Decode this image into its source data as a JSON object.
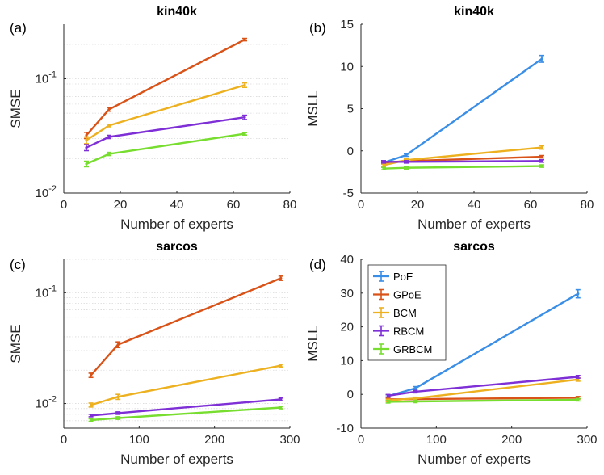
{
  "colors": {
    "PoE": "#3a8ee6",
    "GPoE": "#d95319",
    "BCM": "#edb120",
    "RBCM": "#7e2fd6",
    "GRBCM": "#77dd2e",
    "axis": "#262626",
    "grid": "#d9d9d9"
  },
  "legend": [
    "PoE",
    "GPoE",
    "BCM",
    "RBCM",
    "GRBCM"
  ],
  "chart_data": [
    {
      "panel": "(a)",
      "type": "line",
      "title": "kin40k",
      "xlabel": "Number of experts",
      "ylabel": "SMSE",
      "yscale": "log",
      "xlim": [
        0,
        80
      ],
      "ylim": [
        0.01,
        0.3
      ],
      "xticks": [
        0,
        20,
        40,
        60,
        80
      ],
      "xtick_labels": [
        "0",
        "20",
        "40",
        "60",
        "80"
      ],
      "yticks": [
        0.01,
        0.1
      ],
      "ytick_labels": [
        "10^-2",
        "10^-1"
      ],
      "grid": "minor-y",
      "legend": false,
      "x": [
        8,
        16,
        64
      ],
      "series": [
        {
          "name": "GPoE",
          "values": [
            0.032,
            0.054,
            0.22
          ],
          "err": [
            0.002,
            0.002,
            0.004
          ]
        },
        {
          "name": "BCM",
          "values": [
            0.029,
            0.039,
            0.088
          ],
          "err": [
            0.002,
            0.001,
            0.004
          ]
        },
        {
          "name": "RBCM",
          "values": [
            0.025,
            0.031,
            0.046
          ],
          "err": [
            0.0015,
            0.001,
            0.002
          ]
        },
        {
          "name": "GRBCM",
          "values": [
            0.018,
            0.022,
            0.033
          ],
          "err": [
            0.001,
            0.0007,
            0.0008
          ]
        }
      ]
    },
    {
      "panel": "(b)",
      "type": "line",
      "title": "kin40k",
      "xlabel": "Number of experts",
      "ylabel": "MSLL",
      "yscale": "linear",
      "xlim": [
        0,
        80
      ],
      "ylim": [
        -5,
        15
      ],
      "xticks": [
        0,
        20,
        40,
        60,
        80
      ],
      "xtick_labels": [
        "0",
        "20",
        "40",
        "60",
        "80"
      ],
      "yticks": [
        -5,
        0,
        5,
        10,
        15
      ],
      "ytick_labels": [
        "-5",
        "0",
        "5",
        "10",
        "15"
      ],
      "grid": "none",
      "legend": false,
      "x": [
        8,
        16,
        64
      ],
      "series": [
        {
          "name": "PoE",
          "values": [
            -1.4,
            -0.5,
            10.9
          ],
          "err": [
            0.1,
            0.1,
            0.4
          ]
        },
        {
          "name": "GPoE",
          "values": [
            -1.4,
            -1.2,
            -0.7
          ],
          "err": [
            0.05,
            0.05,
            0.05
          ]
        },
        {
          "name": "BCM",
          "values": [
            -1.7,
            -1.1,
            0.4
          ],
          "err": [
            0.1,
            0.1,
            0.2
          ]
        },
        {
          "name": "RBCM",
          "values": [
            -1.3,
            -1.3,
            -1.2
          ],
          "err": [
            0.05,
            0.05,
            0.05
          ]
        },
        {
          "name": "GRBCM",
          "values": [
            -2.1,
            -2.0,
            -1.8
          ],
          "err": [
            0.05,
            0.05,
            0.05
          ]
        }
      ]
    },
    {
      "panel": "(c)",
      "type": "line",
      "title": "sarcos",
      "xlabel": "Number of experts",
      "ylabel": "SMSE",
      "yscale": "log",
      "xlim": [
        0,
        300
      ],
      "ylim": [
        0.006,
        0.2
      ],
      "xticks": [
        0,
        100,
        200,
        300
      ],
      "xtick_labels": [
        "0",
        "100",
        "200",
        "300"
      ],
      "yticks": [
        0.01,
        0.1
      ],
      "ytick_labels": [
        "10^-2",
        "10^-1"
      ],
      "grid": "minor-y",
      "legend": false,
      "x": [
        36,
        72,
        288
      ],
      "series": [
        {
          "name": "GPoE",
          "values": [
            0.018,
            0.034,
            0.135
          ],
          "err": [
            0.0008,
            0.002,
            0.006
          ]
        },
        {
          "name": "BCM",
          "values": [
            0.0097,
            0.0115,
            0.022
          ],
          "err": [
            0.0004,
            0.0006,
            0.0006
          ]
        },
        {
          "name": "RBCM",
          "values": [
            0.0078,
            0.0082,
            0.0109
          ],
          "err": [
            0.0002,
            0.0002,
            0.0003
          ]
        },
        {
          "name": "GRBCM",
          "values": [
            0.0071,
            0.0074,
            0.0092
          ],
          "err": [
            0.0001,
            0.0002,
            0.0002
          ]
        }
      ]
    },
    {
      "panel": "(d)",
      "type": "line",
      "title": "sarcos",
      "xlabel": "Number of experts",
      "ylabel": "MSLL",
      "yscale": "linear",
      "xlim": [
        0,
        300
      ],
      "ylim": [
        -10,
        40
      ],
      "xticks": [
        0,
        100,
        200,
        300
      ],
      "xtick_labels": [
        "0",
        "100",
        "200",
        "300"
      ],
      "yticks": [
        -10,
        0,
        10,
        20,
        30,
        40
      ],
      "ytick_labels": [
        "-10",
        "0",
        "10",
        "20",
        "30",
        "40"
      ],
      "grid": "none",
      "legend": true,
      "legend_position": "top-left",
      "x": [
        36,
        72,
        288
      ],
      "series": [
        {
          "name": "PoE",
          "values": [
            -0.5,
            1.8,
            29.8
          ],
          "err": [
            0.3,
            0.5,
            1.2
          ]
        },
        {
          "name": "GPoE",
          "values": [
            -1.5,
            -1.4,
            -1.0
          ],
          "err": [
            0.1,
            0.1,
            0.1
          ]
        },
        {
          "name": "BCM",
          "values": [
            -1.8,
            -1.2,
            4.4
          ],
          "err": [
            0.1,
            0.2,
            0.5
          ]
        },
        {
          "name": "RBCM",
          "values": [
            -0.4,
            0.8,
            5.2
          ],
          "err": [
            0.2,
            0.2,
            0.4
          ]
        },
        {
          "name": "GRBCM",
          "values": [
            -2.2,
            -2.1,
            -1.6
          ],
          "err": [
            0.1,
            0.1,
            0.1
          ]
        }
      ]
    }
  ]
}
